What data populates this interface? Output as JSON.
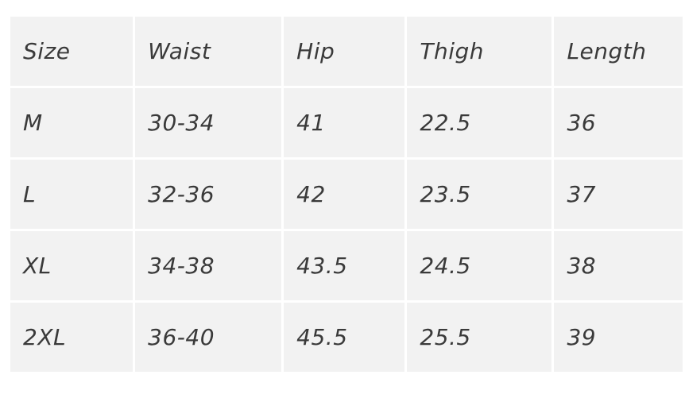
{
  "table": {
    "headers": [
      "Size",
      "Waist",
      "Hip",
      "Thigh",
      "Length"
    ],
    "rows": [
      [
        "M",
        "30-34",
        "41",
        "22.5",
        "36"
      ],
      [
        "L",
        "32-36",
        "42",
        "23.5",
        "37"
      ],
      [
        "XL",
        "34-38",
        "43.5",
        "24.5",
        "38"
      ],
      [
        "2XL",
        "36-40",
        "45.5",
        "25.5",
        "39"
      ]
    ]
  },
  "colors": {
    "cell_background": "#f2f2f2",
    "grid_lines": "#ffffff",
    "text": "#3a3a3a"
  }
}
